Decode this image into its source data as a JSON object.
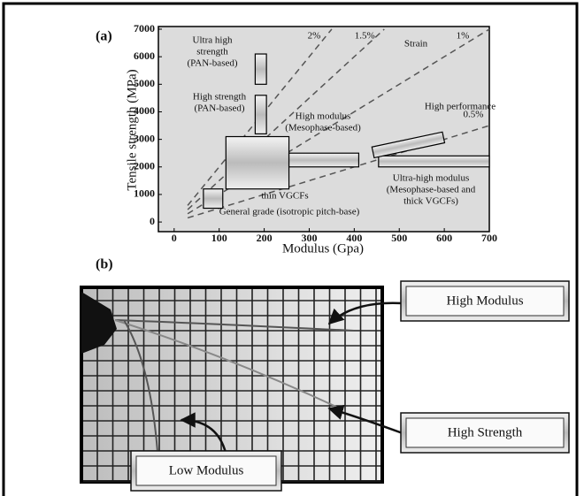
{
  "chart_data": {
    "type": "range-box",
    "label": "(a)",
    "xlabel": "Modulus (Gpa)",
    "ylabel": "Tensile strength (MPa)",
    "xlim": [
      -35,
      700
    ],
    "ylim": [
      -350,
      7000
    ],
    "xticks": [
      0,
      100,
      200,
      300,
      400,
      500,
      600,
      700
    ],
    "yticks": [
      0,
      1000,
      2000,
      3000,
      4000,
      5000,
      6000,
      7000
    ],
    "regions": [
      {
        "label_lines": [
          "Ultra high",
          "strength",
          "(PAN-based)"
        ],
        "x": [
          180,
          205
        ],
        "y": [
          5000,
          6100
        ]
      },
      {
        "label_lines": [
          "High strength",
          "(PAN-based)"
        ],
        "x": [
          180,
          205
        ],
        "y": [
          3200,
          4600
        ]
      },
      {
        "label_lines": [
          "thin VGCFs"
        ],
        "x": [
          115,
          255
        ],
        "y": [
          1200,
          3100
        ]
      },
      {
        "label_lines": [
          "High modulus",
          "(Mesophase-based)"
        ],
        "x": [
          255,
          410
        ],
        "y": [
          2000,
          2500
        ]
      },
      {
        "label_lines": [
          "Ultra-high modulus",
          "(Mesophase-based and",
          "thick VGCFs)"
        ],
        "x": [
          454,
          700
        ],
        "y": [
          2000,
          2400
        ]
      },
      {
        "label_lines": [
          "General grade (isotropic pitch-base)"
        ],
        "x": [
          65,
          108
        ],
        "y": [
          500,
          1200
        ]
      },
      {
        "label_lines": [
          "High performance"
        ],
        "x": [
          440,
          600
        ],
        "y": [
          2600,
          3000
        ]
      }
    ],
    "strain_title": "Strain",
    "strain_lines": [
      {
        "label": "2%",
        "value": 2
      },
      {
        "label": "1.5%",
        "value": 1.5
      },
      {
        "label": "1%",
        "value": 1
      },
      {
        "label": "0.5%",
        "value": 0.5
      }
    ]
  },
  "panel_b": {
    "label": "(b)",
    "callouts": [
      "High Modulus",
      "High Strength",
      "Low Modulus"
    ]
  }
}
